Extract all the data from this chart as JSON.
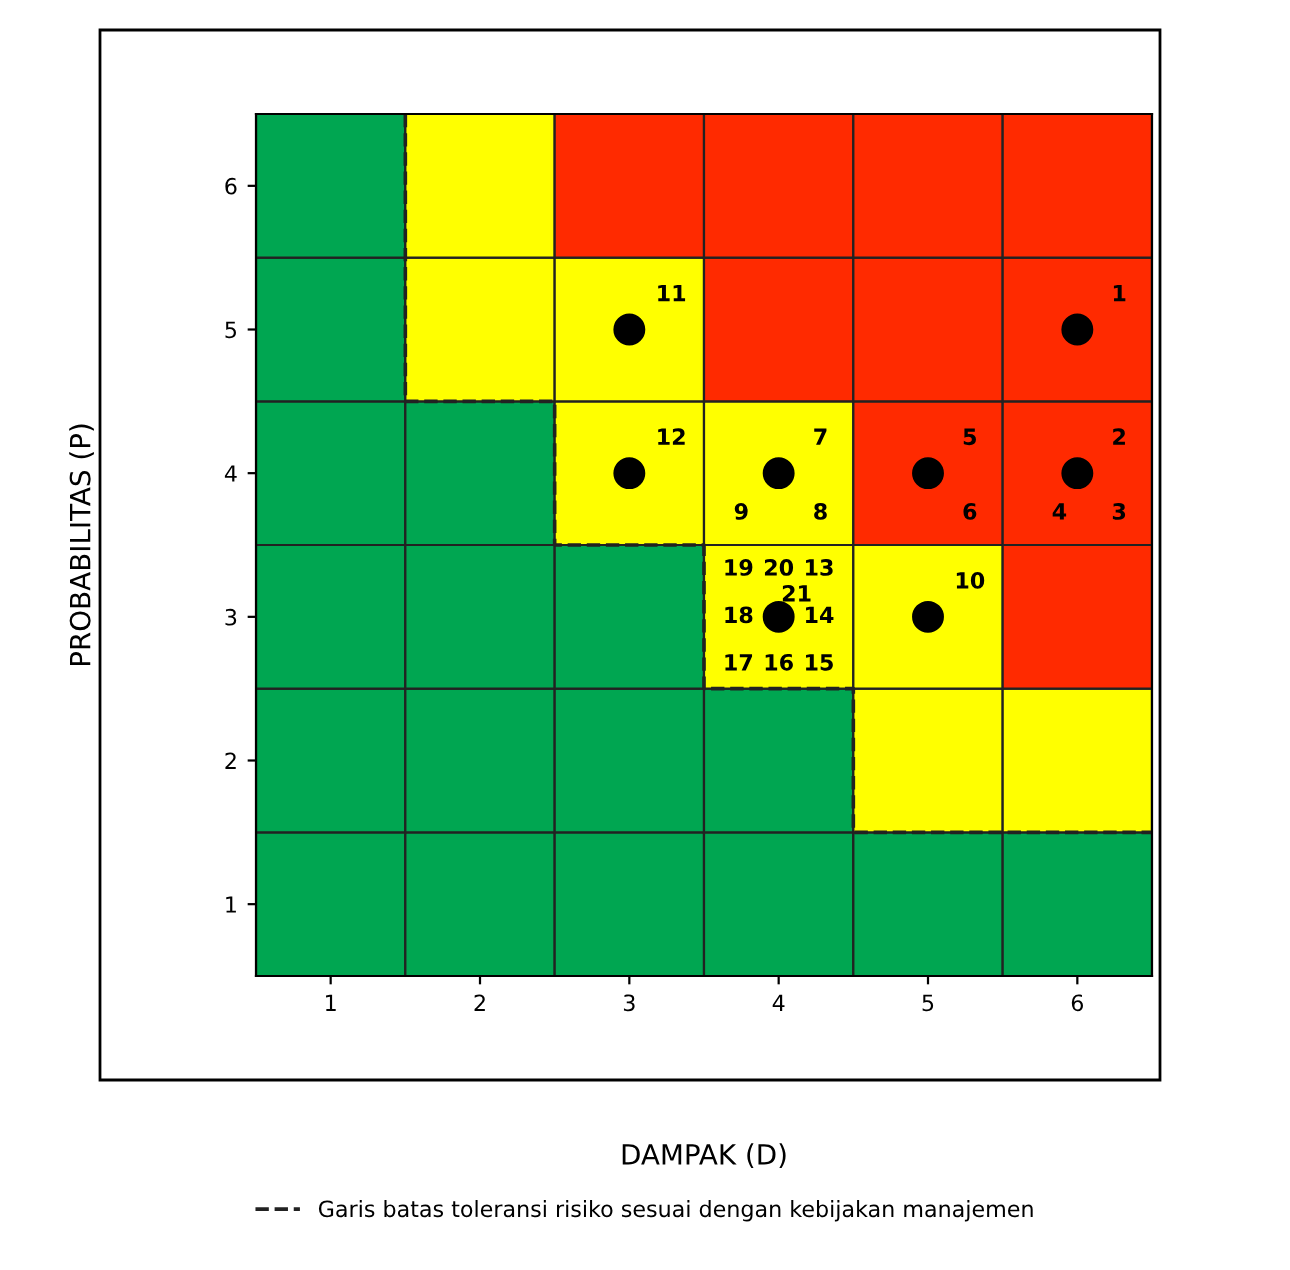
{
  "chart_data": {
    "type": "bar",
    "stacked": true,
    "xlabel": "DAMPAK (D)",
    "ylabel": "PROBABILITAS (P)",
    "x": [
      1,
      2,
      3,
      4,
      5,
      6
    ],
    "series": [
      {
        "values": [
          1.5,
          1.5,
          1.5,
          1.5,
          1.5,
          1.5
        ],
        "colors": [
          "#00a651",
          "#00a651",
          "#00a651",
          "#00a651",
          "#00a651",
          "#00a651"
        ]
      },
      {
        "values": [
          1,
          1,
          1,
          1,
          1,
          1
        ],
        "colors": [
          "#00a651",
          "#00a651",
          "#00a651",
          "#00a651",
          "#ffff00",
          "#ffff00"
        ]
      },
      {
        "values": [
          1,
          1,
          1,
          1,
          1,
          1
        ],
        "colors": [
          "#00a651",
          "#00a651",
          "#00a651",
          "#ffff00",
          "#ffff00",
          "#ff2a00"
        ]
      },
      {
        "values": [
          1,
          1,
          1,
          1,
          1,
          1
        ],
        "colors": [
          "#00a651",
          "#00a651",
          "#ffff00",
          "#ffff00",
          "#ff2a00",
          "#ff2a00"
        ]
      },
      {
        "values": [
          1,
          1,
          1,
          1,
          1,
          1
        ],
        "colors": [
          "#00a651",
          "#ffff00",
          "#ffff00",
          "#ff2a00",
          "#ff2a00",
          "#ff2a00"
        ]
      },
      {
        "values": [
          1,
          1,
          1,
          1,
          1,
          1
        ],
        "colors": [
          "#00a651",
          "#ffff00",
          "#ff2a00",
          "#ff2a00",
          "#ff2a00",
          "#ff2a00"
        ]
      },
      {
        "type": "line",
        "name": "Garis batas toleransi risiko sesuai dengan kebijakan manajemen",
        "color": "#222222",
        "line_style": "dashed",
        "x": [
          1.5,
          1.5,
          2.5,
          2.5,
          3.5,
          3.5,
          4.5,
          4.5,
          6.5
        ],
        "values": [
          6.5,
          4.5,
          4.5,
          3.5,
          3.5,
          2.5,
          2.5,
          1.5,
          1.5
        ]
      },
      {
        "type": "scatter",
        "color": "#000000",
        "marker": "circle",
        "x": [
          6,
          6,
          5,
          4,
          5,
          3,
          3,
          4
        ],
        "values": [
          5,
          4,
          4,
          4,
          3,
          5,
          4,
          3
        ]
      }
    ],
    "grid": false,
    "legend": "bottom",
    "xlim": [
      0.5,
      6.5
    ],
    "ylim": [
      0.5,
      6.5
    ],
    "xticks": [
      1,
      2,
      3,
      4,
      5,
      6
    ],
    "yticks": [
      1,
      2,
      3,
      4,
      5,
      6
    ],
    "annotations": [
      {
        "text": "1",
        "x": 6,
        "y": 5
      },
      {
        "text": "2",
        "x": 6,
        "y": 4
      },
      {
        "text": "3",
        "x": 6,
        "y": 4
      },
      {
        "text": "4",
        "x": 6,
        "y": 4
      },
      {
        "text": "5",
        "x": 5,
        "y": 4
      },
      {
        "text": "6",
        "x": 5,
        "y": 4
      },
      {
        "text": "7",
        "x": 4,
        "y": 4
      },
      {
        "text": "8",
        "x": 4,
        "y": 4
      },
      {
        "text": "9",
        "x": 4,
        "y": 4
      },
      {
        "text": "10",
        "x": 5,
        "y": 3
      },
      {
        "text": "11",
        "x": 3,
        "y": 5
      },
      {
        "text": "12",
        "x": 3,
        "y": 4
      },
      {
        "text": "13",
        "x": 4,
        "y": 3
      },
      {
        "text": "14",
        "x": 4,
        "y": 3
      },
      {
        "text": "15",
        "x": 4,
        "y": 3
      },
      {
        "text": "16",
        "x": 4,
        "y": 3
      },
      {
        "text": "17",
        "x": 4,
        "y": 3
      },
      {
        "text": "18",
        "x": 4,
        "y": 3
      },
      {
        "text": "19",
        "x": 4,
        "y": 3
      },
      {
        "text": "20",
        "x": 4,
        "y": 3
      },
      {
        "text": "21",
        "x": 4,
        "y": 3
      }
    ]
  }
}
